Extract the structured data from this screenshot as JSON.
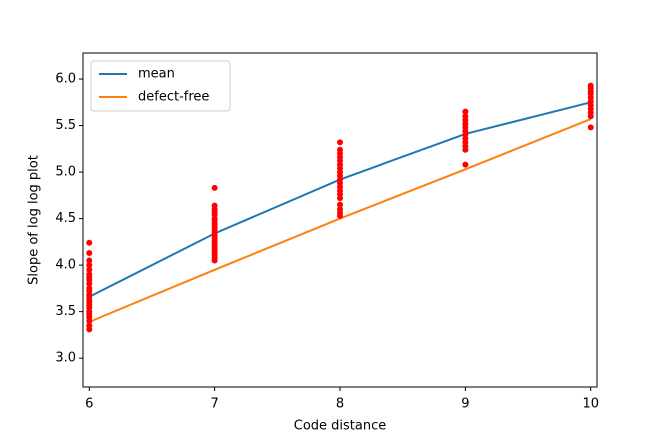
{
  "chart_data": {
    "type": "line",
    "xlabel": "Code distance",
    "ylabel": "Slope of log log plot",
    "x": [
      6,
      7,
      8,
      9,
      10
    ],
    "series": [
      {
        "name": "mean",
        "color": "#1f77b4",
        "values": [
          3.66,
          4.34,
          4.92,
          5.41,
          5.75
        ]
      },
      {
        "name": "defect-free",
        "color": "#ff7f0e",
        "values": [
          3.39,
          3.95,
          4.5,
          5.03,
          5.57
        ]
      }
    ],
    "points": {
      "color": "#ff0000",
      "x": [
        6,
        6,
        6,
        6,
        6,
        6,
        6,
        6,
        6,
        6,
        6,
        6,
        6,
        6,
        6,
        6,
        6,
        6,
        6,
        6,
        6,
        6,
        6,
        7,
        7,
        7,
        7,
        7,
        7,
        7,
        7,
        7,
        7,
        7,
        7,
        7,
        7,
        7,
        7,
        7,
        7,
        7,
        7,
        7,
        8,
        8,
        8,
        8,
        8,
        8,
        8,
        8,
        8,
        8,
        8,
        8,
        8,
        8,
        8,
        8,
        8,
        8,
        8,
        9,
        9,
        9,
        9,
        9,
        9,
        9,
        9,
        9,
        9,
        9,
        9,
        10,
        10,
        10,
        10,
        10,
        10,
        10,
        10,
        10,
        10,
        10
      ],
      "y": [
        4.24,
        4.13,
        4.05,
        4.0,
        3.95,
        3.9,
        3.87,
        3.84,
        3.8,
        3.75,
        3.72,
        3.68,
        3.65,
        3.62,
        3.6,
        3.57,
        3.54,
        3.5,
        3.47,
        3.44,
        3.4,
        3.35,
        3.31,
        4.83,
        4.64,
        4.6,
        4.57,
        4.54,
        4.5,
        4.47,
        4.44,
        4.41,
        4.38,
        4.35,
        4.32,
        4.29,
        4.26,
        4.23,
        4.2,
        4.17,
        4.14,
        4.11,
        4.08,
        4.05,
        5.32,
        5.24,
        5.2,
        5.16,
        5.12,
        5.08,
        5.04,
        5.0,
        4.96,
        4.92,
        4.88,
        4.84,
        4.8,
        4.76,
        4.72,
        4.65,
        4.6,
        4.56,
        4.53,
        5.65,
        5.6,
        5.56,
        5.52,
        5.48,
        5.44,
        5.4,
        5.36,
        5.32,
        5.28,
        5.24,
        5.08,
        5.93,
        5.9,
        5.87,
        5.84,
        5.8,
        5.76,
        5.72,
        5.68,
        5.64,
        5.6,
        5.48
      ]
    },
    "xlim": [
      5.95,
      10.05
    ],
    "ylim": [
      2.69,
      6.28
    ],
    "xticks": [
      6,
      7,
      8,
      9,
      10
    ],
    "yticks": [
      {
        "value": 3,
        "label": "3.0"
      },
      {
        "value": 3.5,
        "label": "3.5"
      },
      {
        "value": 4,
        "label": "4.0"
      },
      {
        "value": 4.5,
        "label": "4.5"
      },
      {
        "value": 5,
        "label": "5.0"
      },
      {
        "value": 5.5,
        "label": "5.5"
      },
      {
        "value": 6,
        "label": "6.0"
      }
    ],
    "legend": "upper-left"
  }
}
